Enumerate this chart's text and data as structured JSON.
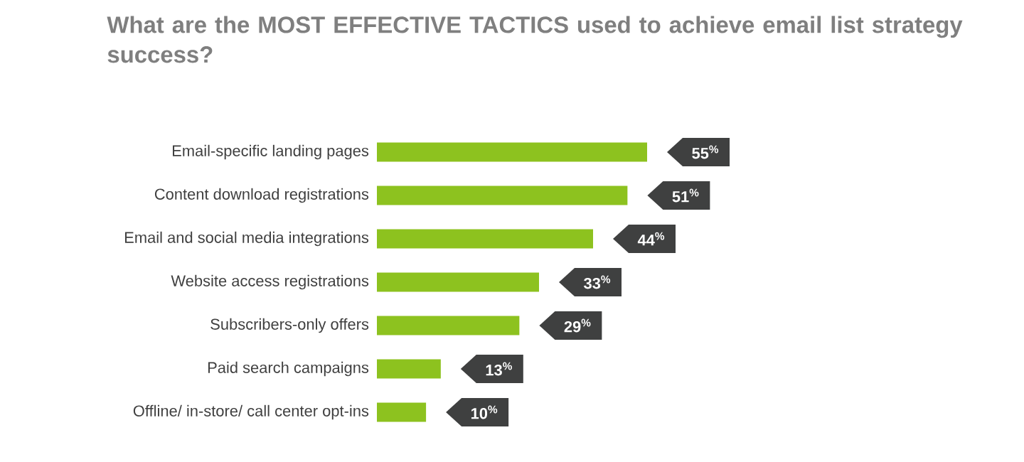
{
  "chart_data": {
    "type": "bar",
    "orientation": "horizontal",
    "title": "What are the MOST EFFECTIVE TACTICS used to achieve email list strategy success?",
    "categories": [
      "Email-specific landing pages",
      "Content download registrations",
      "Email and social media integrations",
      "Website access registrations",
      "Subscribers-only offers",
      "Paid search campaigns",
      "Offline/ in-store/ call center opt-ins"
    ],
    "series": [
      {
        "color": "#8dc21f",
        "values": [
          55,
          51,
          44,
          33,
          29,
          13,
          10
        ],
        "value_labels": [
          "55$^{%}$",
          "51$^{%}$",
          "44$^{%}$",
          "33$^{%}$",
          "29$^{%}$",
          "13$^{%}$",
          "10$^{%}$"
        ]
      }
    ],
    "tick_labels": "y"
  }
}
